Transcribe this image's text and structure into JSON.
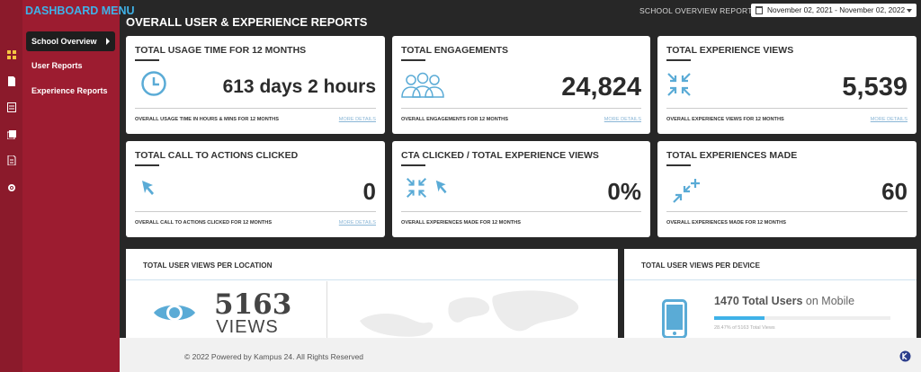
{
  "sidebar": {
    "title": "DASHBOARD MENU",
    "items": [
      {
        "label": "School Overview"
      },
      {
        "label": "User Reports"
      },
      {
        "label": "Experience Reports"
      }
    ]
  },
  "header": {
    "title": "OVERALL USER & EXPERIENCE REPORTS",
    "report_label": "SCHOOL OVERVIEW REPORTS:",
    "date_range": "November 02, 2021 - November 02, 2022"
  },
  "cards": [
    {
      "title": "TOTAL USAGE TIME FOR 12 MONTHS",
      "value": "613 days 2 hours",
      "footer": "OVERALL USAGE TIME IN HOURS & MINS FOR 12 MONTHS",
      "more": "MORE DETAILS",
      "icon": "clock-icon"
    },
    {
      "title": "TOTAL ENGAGEMENTS",
      "value": "24,824",
      "footer": "OVERALL ENGAGEMENTS FOR 12 MONTHS",
      "more": "MORE DETAILS",
      "icon": "users-icon"
    },
    {
      "title": "TOTAL EXPERIENCE VIEWS",
      "value": "5,539",
      "footer": "OVERALL EXPERIENCE VIEWS FOR 12 MONTHS",
      "more": "MORE DETAILS",
      "icon": "compress-icon"
    },
    {
      "title": "TOTAL CALL TO ACTIONS CLICKED",
      "value": "0",
      "footer": "OVERALL CALL TO ACTIONS CLICKED FOR 12 MONTHS",
      "more": "MORE DETAILS",
      "icon": "cursor-icon"
    },
    {
      "title": "CTA CLICKED / TOTAL EXPERIENCE VIEWS",
      "value": "0%",
      "footer": "OVERALL EXPERIENCES MADE FOR 12 MONTHS",
      "icon": "compress-cursor-icon"
    },
    {
      "title": "TOTAL EXPERIENCES MADE",
      "value": "60",
      "footer": "OVERALL EXPERIENCES MADE FOR 12 MONTHS",
      "icon": "compress-plus-icon"
    }
  ],
  "location_panel": {
    "title": "TOTAL USER VIEWS PER LOCATION",
    "count": "5163",
    "unit": "VIEWS"
  },
  "device_panel": {
    "title": "TOTAL USER VIEWS PER DEVICE",
    "users": "1470 Total Users",
    "on": "on Mobile",
    "sub": "28.47% of 5163 Total Views",
    "progress": 0.2847
  },
  "footer": {
    "text": "© 2022 Powered by Kampus 24. All Rights Reserved"
  },
  "colors": {
    "accent": "#3fb2e8",
    "sidebar": "#9c1c30",
    "icon_blue": "#5aabd6"
  }
}
